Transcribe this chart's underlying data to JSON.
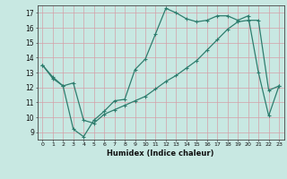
{
  "line1_x": [
    0,
    1,
    2,
    3,
    4,
    5,
    6,
    7,
    8,
    9,
    10,
    11,
    12,
    13,
    14,
    15,
    16,
    17,
    18,
    19,
    20,
    21,
    22,
    23
  ],
  "line1_y": [
    13.5,
    12.6,
    12.1,
    9.2,
    8.7,
    9.8,
    10.4,
    11.1,
    11.2,
    13.2,
    13.9,
    15.6,
    17.3,
    17.0,
    16.6,
    16.4,
    16.5,
    16.8,
    16.8,
    16.5,
    16.8,
    13.0,
    10.1,
    12.1
  ],
  "line2_x": [
    0,
    1,
    2,
    3,
    4,
    5,
    6,
    7,
    8,
    9,
    10,
    11,
    12,
    13,
    14,
    15,
    16,
    17,
    18,
    19,
    20,
    21,
    22,
    23
  ],
  "line2_y": [
    13.5,
    12.7,
    12.1,
    12.3,
    9.8,
    9.6,
    10.2,
    10.5,
    10.8,
    11.1,
    11.4,
    11.9,
    12.4,
    12.8,
    13.3,
    13.8,
    14.5,
    15.2,
    15.9,
    16.4,
    16.5,
    16.5,
    11.8,
    12.1
  ],
  "line_color": "#2e7d6e",
  "bg_color": "#c8e8e2",
  "grid_color": "#b0d0cc",
  "xlabel": "Humidex (Indice chaleur)",
  "ylim": [
    8.5,
    17.5
  ],
  "xlim": [
    -0.5,
    23.5
  ],
  "yticks": [
    9,
    10,
    11,
    12,
    13,
    14,
    15,
    16,
    17
  ],
  "xticks": [
    0,
    1,
    2,
    3,
    4,
    5,
    6,
    7,
    8,
    9,
    10,
    11,
    12,
    13,
    14,
    15,
    16,
    17,
    18,
    19,
    20,
    21,
    22,
    23
  ],
  "marker_size": 2.0,
  "line_width": 0.9
}
